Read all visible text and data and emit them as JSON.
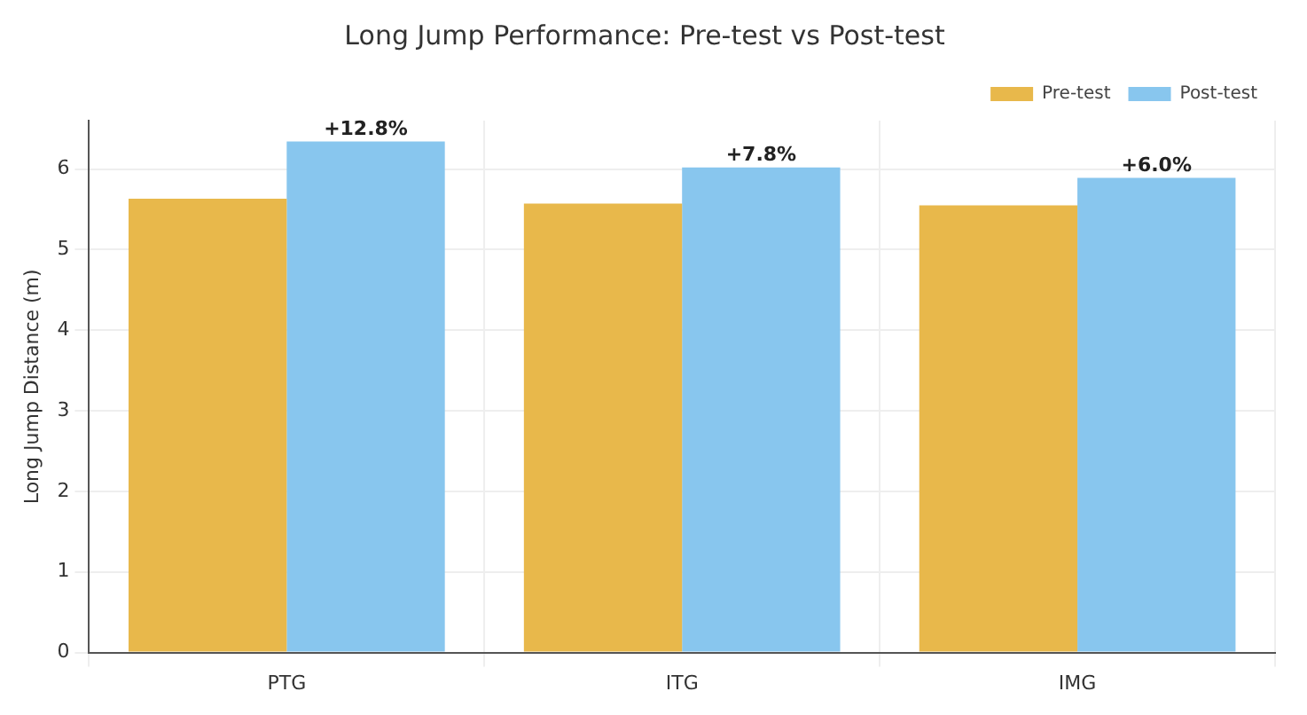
{
  "chart_data": {
    "type": "bar",
    "title": "Long Jump Performance: Pre-test vs Post-test",
    "ylabel": "Long Jump Distance (m)",
    "categories": [
      "PTG",
      "ITG",
      "IMG"
    ],
    "series": [
      {
        "name": "Pre-test",
        "color": "#e8b84b",
        "values": [
          5.63,
          5.57,
          5.55
        ]
      },
      {
        "name": "Post-test",
        "color": "#88c6ee",
        "values": [
          6.34,
          6.02,
          5.89
        ]
      }
    ],
    "ylim": [
      0,
      6.6
    ],
    "yticks": [
      0,
      1,
      2,
      3,
      4,
      5,
      6
    ],
    "grid": true,
    "legend": "top right",
    "annotations": [
      {
        "text": "+12.8%",
        "x": "PTG",
        "y": 6.34
      },
      {
        "text": "+7.8%",
        "x": "ITG",
        "y": 6.02
      },
      {
        "text": "+6.0%",
        "x": "IMG",
        "y": 5.89
      }
    ]
  }
}
